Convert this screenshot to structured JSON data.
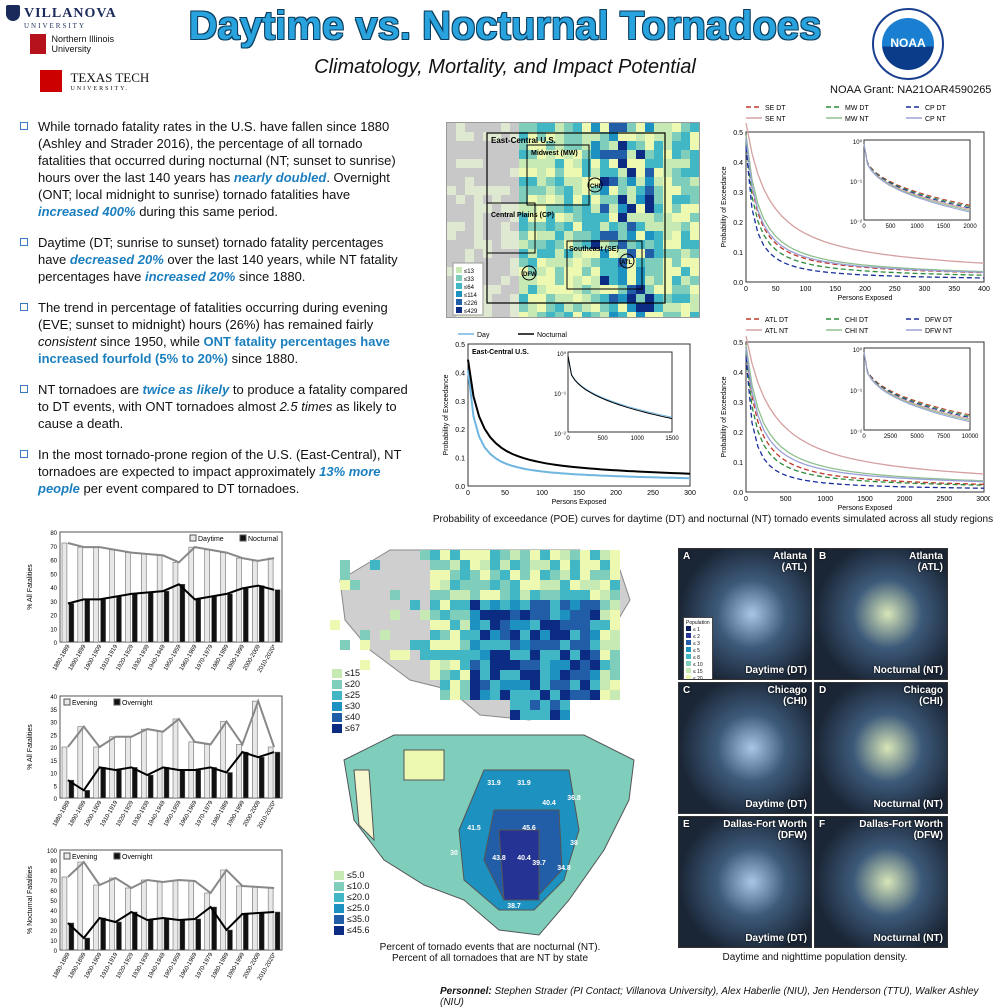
{
  "logos": {
    "villanova": "VILLANOVA",
    "villanova_sub": "UNIVERSITY",
    "niu": "Northern Illinois",
    "niu_sub": "University",
    "ttu": "TEXAS TECH",
    "ttu_sub": "UNIVERSITY.",
    "noaa": "NOAA"
  },
  "title": "Daytime vs. Nocturnal Tornadoes",
  "subtitle": "Climatology, Mortality, and Impact Potential",
  "grant": "NOAA Grant: NA21OAR4590265",
  "bullets": [
    {
      "a": "While tornado fatality rates in the U.S. have fallen since 1880 (Ashley and Strader 2016), the percentage of all tornado fatalities that occurred during nocturnal (NT; sunset to sunrise) hours over the last 140 years has ",
      "h1": "nearly doubled",
      "b": ". Overnight (ONT; local midnight to sunrise) tornado fatalities have ",
      "h2": "increased 400%",
      "c": " during this same period."
    },
    {
      "a": "Daytime (DT; sunrise to sunset) tornado fatality percentages have ",
      "h1": "decreased 20%",
      "b": " over the last 140 years, while NT fatality percentages have ",
      "h2": "increased 20%",
      "c": " since 1880."
    },
    {
      "a": "The trend in percentage of fatalities occurring during evening (EVE; sunset to midnight) hours (26%) has remained fairly ",
      "i1": "consistent",
      "b": " since 1950, while ",
      "h2": "ONT fatality percentages have increased fourfold (5% to 20%)",
      "c": " since 1880."
    },
    {
      "a": "NT tornadoes are ",
      "h1": "twice as likely",
      "b": " to produce a fatality compared to DT events, with ONT tornadoes almost ",
      "i1": "2.5 times",
      "c": " as likely to cause a death."
    },
    {
      "a": "In the most tornado-prone region of the U.S. (East-Central), NT tornadoes are expected to impact approximately ",
      "h1": "13% more people",
      "b": " per event compared to DT tornadoes."
    }
  ],
  "map_regions": {
    "ec": "East-Central U.S.",
    "mw": "Midwest (MW)",
    "cp": "Central Plains (CP)",
    "se": "Southeast (SE)",
    "chi": "CHI",
    "dfw": "DFW",
    "atl": "ATL"
  },
  "map_legend": [
    "≤13",
    "≤33",
    "≤64",
    "≤114",
    "≤226",
    "≤429"
  ],
  "poe_caption": "Probability of exceedance (POE) curves for daytime (DT) and nocturnal (NT) tornado events simulated across all study regions",
  "poe_top_right": {
    "legend": [
      "SE DT",
      "MW DT",
      "CP DT",
      "SE NT",
      "MW NT",
      "CP NT"
    ],
    "xlabel": "Persons Exposed",
    "ylabel": "Probability of Exceedance",
    "xticks": [
      "0",
      "50",
      "100",
      "150",
      "200",
      "250",
      "300",
      "350",
      "400"
    ],
    "yticks": [
      "0.0",
      "0.1",
      "0.2",
      "0.3",
      "0.4",
      "0.5"
    ],
    "inset_x": [
      "0",
      "500",
      "1000",
      "1500",
      "2000"
    ]
  },
  "poe_mid": {
    "legend": [
      "Day",
      "Nocturnal"
    ],
    "region": "East-Central U.S.",
    "xlabel": "Persons Exposed",
    "ylabel": "Probability of Exceedance",
    "xticks": [
      "0",
      "50",
      "100",
      "150",
      "200",
      "250",
      "300"
    ],
    "yticks": [
      "0.0",
      "0.1",
      "0.2",
      "0.3",
      "0.4",
      "0.5"
    ],
    "inset_x": [
      "0",
      "500",
      "1000",
      "1500"
    ]
  },
  "poe_bottom_right": {
    "legend": [
      "ATL DT",
      "CHI DT",
      "DFW DT",
      "ATL NT",
      "CHI NT",
      "DFW NT"
    ],
    "xlabel": "Persons Exposed",
    "ylabel": "Probability of Exceedance",
    "xticks": [
      "0",
      "500",
      "1000",
      "1500",
      "2000",
      "2500",
      "3000"
    ],
    "yticks": [
      "0.0",
      "0.1",
      "0.2",
      "0.3",
      "0.4",
      "0.5"
    ],
    "inset_x": [
      "0",
      "2500",
      "5000",
      "7500",
      "10000"
    ]
  },
  "inset_yticks": [
    "10⁰",
    "10⁻¹",
    "10⁻²"
  ],
  "chart_data": [
    {
      "type": "bar",
      "ylabel": "% All Fatalities",
      "ylim": [
        0,
        80
      ],
      "yticks": [
        "0",
        "10",
        "20",
        "30",
        "40",
        "50",
        "60",
        "70",
        "80"
      ],
      "categories": [
        "1880-1889",
        "1890-1899",
        "1900-1909",
        "1910-1919",
        "1920-1929",
        "1930-1939",
        "1940-1949",
        "1950-1959",
        "1960-1969",
        "1970-1979",
        "1980-1989",
        "1990-1999",
        "2000-2009",
        "2010-2020*"
      ],
      "series": [
        {
          "name": "Daytime",
          "values": [
            72,
            69,
            69,
            67,
            65,
            64,
            63,
            58,
            69,
            67,
            65,
            61,
            59,
            61
          ]
        },
        {
          "name": "Nocturnal",
          "values": [
            28,
            31,
            31,
            33,
            35,
            36,
            37,
            42,
            31,
            33,
            35,
            39,
            41,
            38
          ]
        }
      ]
    },
    {
      "type": "bar",
      "ylabel": "% All Fatalities",
      "ylim": [
        0,
        40
      ],
      "yticks": [
        "0",
        "5",
        "10",
        "15",
        "20",
        "25",
        "30",
        "35",
        "40"
      ],
      "categories": [
        "1880-1889",
        "1890-1899",
        "1900-1909",
        "1910-1919",
        "1920-1929",
        "1930-1939",
        "1940-1949",
        "1950-1959",
        "1960-1969",
        "1970-1979",
        "1980-1989",
        "1990-1999",
        "2000-2009",
        "2010-2020*"
      ],
      "series": [
        {
          "name": "Evening",
          "values": [
            20,
            28,
            20,
            24,
            24,
            27,
            26,
            31,
            22,
            21,
            30,
            21,
            38,
            20
          ]
        },
        {
          "name": "Overnight",
          "values": [
            7,
            3,
            12,
            11,
            12,
            9,
            12,
            11,
            11,
            12,
            10,
            18,
            16,
            18
          ]
        }
      ]
    },
    {
      "type": "bar",
      "ylabel": "% Nocturnal Fatalities",
      "ylim": [
        0,
        100
      ],
      "yticks": [
        "0",
        "10",
        "20",
        "30",
        "40",
        "50",
        "60",
        "70",
        "80",
        "90",
        "100"
      ],
      "categories": [
        "1880-1889",
        "1890-1899",
        "1900-1909",
        "1910-1919",
        "1920-1929",
        "1930-1939",
        "1940-1949",
        "1950-1959",
        "1960-1969",
        "1970-1979",
        "1980-1989",
        "1990-1999",
        "2000-2009",
        "2010-2020*"
      ],
      "series": [
        {
          "name": "Evening",
          "values": [
            73,
            88,
            65,
            72,
            62,
            70,
            68,
            70,
            69,
            57,
            80,
            64,
            63,
            62
          ]
        },
        {
          "name": "Overnight",
          "values": [
            27,
            12,
            32,
            28,
            38,
            30,
            32,
            30,
            31,
            43,
            20,
            36,
            37,
            38
          ]
        }
      ]
    }
  ],
  "nt_map_legend": [
    "≤15",
    "≤20",
    "≤25",
    "≤30",
    "≤40",
    "≤67"
  ],
  "state_map_legend": [
    "≤5.0",
    "≤10.0",
    "≤20.0",
    "≤25.0",
    "≤35.0",
    "≤45.6"
  ],
  "state_values": [
    "31.9",
    "31.9",
    "40.4",
    "36.8",
    "41.5",
    "45.6",
    "30",
    "38",
    "43.8",
    "40.4",
    "39.7",
    "34.8",
    "38.7"
  ],
  "map_caption1": "Percent of tornado events that are nocturnal (NT).",
  "map_caption2": "Percent of all tornadoes that are NT by state",
  "pop_panels": [
    {
      "letter": "A",
      "city": "Atlanta",
      "abbr": "(ATL)",
      "period": "Daytime (DT)"
    },
    {
      "letter": "B",
      "city": "Atlanta",
      "abbr": "(ATL)",
      "period": "Nocturnal (NT)"
    },
    {
      "letter": "C",
      "city": "Chicago",
      "abbr": "(CHI)",
      "period": "Daytime (DT)"
    },
    {
      "letter": "D",
      "city": "Chicago",
      "abbr": "(CHI)",
      "period": "Nocturnal (NT)"
    },
    {
      "letter": "E",
      "city": "Dallas-Fort Worth",
      "abbr": "(DFW)",
      "period": "Daytime (DT)"
    },
    {
      "letter": "F",
      "city": "Dallas-Fort Worth",
      "abbr": "(DFW)",
      "period": "Nocturnal (NT)"
    }
  ],
  "pop_legend_title": "Population",
  "pop_legend": [
    "≤ 1",
    "≤ 2",
    "≤ 3",
    "≤ 5",
    "≤ 8",
    "≤ 10",
    "≤ 15",
    "≤ 20",
    "≤ 30",
    "≤ 50",
    "> 50"
  ],
  "pop_caption": "Daytime and nighttime population density.",
  "personnel_label": "Personnel:",
  "personnel": "Stephen Strader (PI Contact; Villanova University), Alex Haberlie (NIU), Jen Henderson (TTU), Walker Ashley (NIU)",
  "colors": {
    "accent": "#1b7fbf",
    "title": "#29a3dd",
    "map_dark": "#0b1d6b",
    "map_light": "#d8f0b0"
  }
}
